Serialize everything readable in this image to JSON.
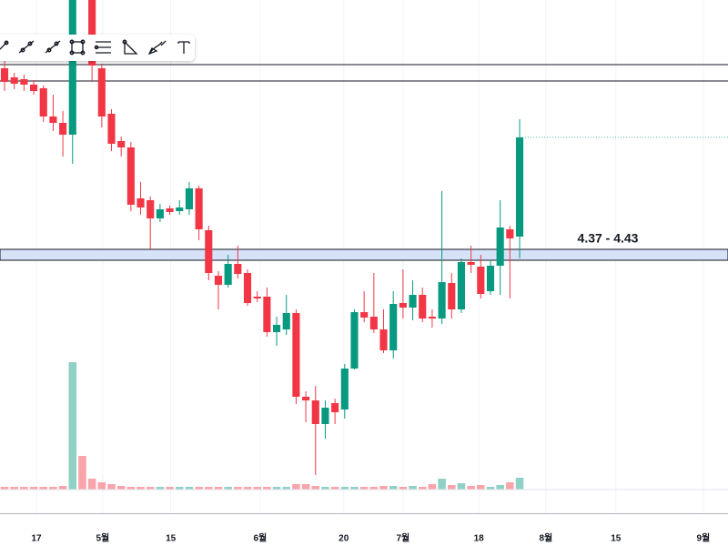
{
  "chart_data": {
    "type": "candlestick",
    "categories": [
      null,
      null,
      null,
      null,
      null,
      null,
      null,
      null,
      null,
      null,
      null,
      null,
      null,
      null,
      null,
      null,
      null,
      null,
      null,
      null,
      null,
      null,
      null,
      null,
      null,
      null,
      null,
      null,
      null,
      null,
      null,
      null,
      null,
      null,
      null,
      null,
      null,
      null,
      null,
      null,
      null,
      null,
      null,
      null,
      null,
      null,
      null,
      null,
      null,
      null,
      null,
      null,
      null,
      null
    ],
    "open": [
      5.425,
      5.375,
      5.365,
      5.335,
      5.315,
      5.16,
      5.125,
      5.06,
      null,
      5.85,
      5.425,
      5.175,
      5.025,
      4.99,
      4.71,
      4.7,
      4.6,
      4.655,
      4.64,
      4.65,
      4.765,
      4.535,
      4.285,
      4.235,
      4.35,
      4.3,
      4.17,
      4.17,
      3.975,
      3.99,
      4.08,
      3.62,
      3.6,
      3.47,
      3.585,
      3.55,
      3.775,
      4.085,
      4.06,
      3.99,
      3.875,
      4.135,
      4.11,
      4.18,
      4.06,
      4.05,
      4.245,
      4.1,
      4.36,
      4.335,
      4.2,
      4.34,
      4.54,
      4.5
    ],
    "high": [
      5.5,
      5.4,
      5.39,
      5.36,
      5.33,
      5.28,
      5.19,
      5.9,
      null,
      5.9,
      5.45,
      5.2,
      5.05,
      5.02,
      4.8,
      4.72,
      4.68,
      4.67,
      4.7,
      4.8,
      4.78,
      4.56,
      4.31,
      4.4,
      4.45,
      4.32,
      4.2,
      4.22,
      4.06,
      4.18,
      4.1,
      3.65,
      3.68,
      3.6,
      3.61,
      3.8,
      4.1,
      4.2,
      4.3,
      4.1,
      4.2,
      4.32,
      4.26,
      4.22,
      4.1,
      4.75,
      4.3,
      4.38,
      4.45,
      4.4,
      4.37,
      4.7,
      4.56,
      5.145
    ],
    "low": [
      5.3,
      5.31,
      5.3,
      5.28,
      5.13,
      5.08,
      4.94,
      4.9,
      null,
      5.35,
      5.1,
      4.97,
      4.94,
      4.64,
      4.62,
      4.43,
      4.58,
      4.62,
      4.62,
      4.62,
      4.48,
      4.26,
      4.1,
      4.22,
      4.27,
      4.12,
      4.14,
      3.95,
      3.9,
      3.96,
      3.58,
      3.48,
      3.19,
      3.39,
      3.47,
      3.5,
      3.77,
      4.03,
      3.97,
      3.86,
      3.83,
      4.05,
      4.04,
      4.03,
      4.0,
      4.02,
      4.05,
      4.08,
      4.3,
      4.16,
      4.18,
      4.18,
      4.16,
      4.38
    ],
    "close": [
      5.35,
      5.34,
      5.335,
      5.3,
      5.16,
      5.125,
      5.06,
      5.85,
      null,
      5.44,
      5.16,
      5.01,
      4.99,
      4.675,
      4.66,
      4.6,
      4.65,
      4.635,
      4.66,
      4.765,
      4.54,
      4.3,
      4.235,
      4.35,
      4.295,
      4.135,
      4.16,
      3.975,
      4.015,
      4.08,
      3.62,
      3.6,
      3.47,
      3.56,
      3.535,
      3.775,
      4.085,
      4.055,
      3.99,
      3.875,
      4.13,
      4.11,
      4.18,
      4.05,
      4.05,
      4.25,
      4.1,
      4.36,
      4.345,
      4.185,
      4.34,
      4.55,
      4.49,
      5.045
    ],
    "volume": [
      3,
      3,
      3,
      3,
      3,
      3,
      4,
      140,
      37,
      12,
      8,
      6,
      4,
      3,
      3,
      3,
      3,
      3,
      3,
      3,
      3,
      3,
      3,
      3,
      3,
      3,
      3,
      3,
      3,
      3,
      6,
      6,
      4,
      3,
      3,
      3,
      3,
      3,
      3,
      4,
      4,
      3,
      4,
      3,
      6,
      12,
      5,
      7,
      4,
      5,
      3,
      5,
      8,
      13
    ],
    "up_color": "#089981",
    "down_color": "#f23645",
    "ylim": [
      3.0,
      5.8
    ],
    "xlim": [
      -0.47,
      74.44
    ],
    "xticks": [
      {
        "value": 3.28,
        "label": "17"
      },
      {
        "value": 10.1,
        "label": "5월"
      },
      {
        "value": 17.1,
        "label": "15"
      },
      {
        "value": 26.3,
        "label": "6월"
      },
      {
        "value": 34.9,
        "label": "20"
      },
      {
        "value": 41.0,
        "label": "7월"
      },
      {
        "value": 48.8,
        "label": "18"
      },
      {
        "value": 55.7,
        "label": "8월"
      },
      {
        "value": 62.9,
        "label": "15"
      },
      {
        "value": 71.9,
        "label": "9월"
      }
    ],
    "grid": true,
    "hlines": [
      5.445,
      5.355
    ],
    "zone": {
      "low": 4.37,
      "high": 4.43,
      "label": "4.37 - 4.43"
    }
  }
}
